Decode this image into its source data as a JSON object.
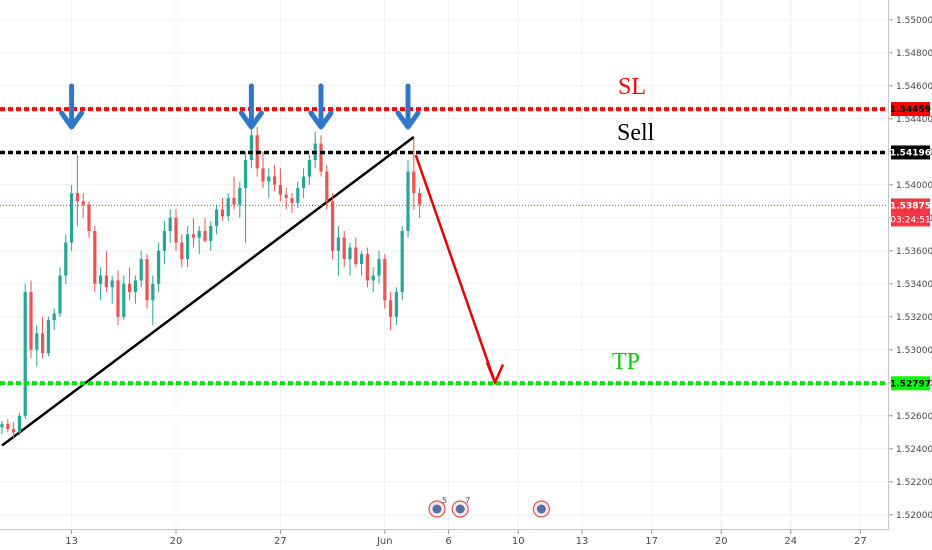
{
  "chart_data": {
    "type": "candlestick",
    "y_axis": {
      "ticks": [
        "1.55000",
        "1.54800",
        "1.54600",
        "1.54400",
        "1.54200",
        "1.54000",
        "1.53800",
        "1.53600",
        "1.53400",
        "1.53200",
        "1.53000",
        "1.52800",
        "1.52600",
        "1.52400",
        "1.52200",
        "1.52000"
      ],
      "range": [
        1.5192,
        1.5512
      ]
    },
    "x_axis": {
      "ticks": [
        {
          "label": "13",
          "idx": 12
        },
        {
          "label": "20",
          "idx": 30
        },
        {
          "label": "27",
          "idx": 48
        },
        {
          "label": "Jun",
          "idx": 66
        },
        {
          "label": "6",
          "idx": 77
        },
        {
          "label": "10",
          "idx": 89
        },
        {
          "label": "13",
          "idx": 100
        },
        {
          "label": "17",
          "idx": 112
        },
        {
          "label": "20",
          "idx": 124
        },
        {
          "label": "24",
          "idx": 136
        },
        {
          "label": "27",
          "idx": 148
        }
      ]
    },
    "levels": [
      {
        "name": "SL",
        "price": 1.54459,
        "label": "1.54459",
        "color": "#ff0000"
      },
      {
        "name": "Sell",
        "price": 1.54196,
        "label": "1.54196",
        "color": "#000000"
      },
      {
        "name": "TP",
        "price": 1.52797,
        "label": "1.52797",
        "color": "#00e000"
      }
    ],
    "current_price": {
      "value": 1.53875,
      "label": "1.53875",
      "countdown": "03:24:51",
      "color": "#f23645"
    },
    "annotations": [
      {
        "text": "SL",
        "color": "#ff0000"
      },
      {
        "text": "Sell",
        "color": "#000000"
      },
      {
        "text": "TP",
        "color": "#00d000"
      }
    ],
    "trendline": {
      "start": {
        "idx": 0,
        "price": 1.5242
      },
      "end": {
        "idx": 71,
        "price": 1.5429
      }
    },
    "projection": {
      "start": {
        "idx": 71,
        "price": 1.5418
      },
      "end": {
        "idx": 85,
        "price": 1.5279
      },
      "color": "#ee0000"
    },
    "arrow_markers": [
      {
        "idx": 12
      },
      {
        "idx": 43
      },
      {
        "idx": 55
      },
      {
        "idx": 70
      }
    ],
    "event_markers": [
      {
        "idx": 75,
        "count": "5"
      },
      {
        "idx": 79,
        "count": "7"
      },
      {
        "idx": 93,
        "count": ""
      }
    ],
    "candles": [
      [
        1.5253,
        1.5257,
        1.5249,
        1.5255
      ],
      [
        1.5255,
        1.5258,
        1.525,
        1.5252
      ],
      [
        1.5252,
        1.5256,
        1.5246,
        1.525
      ],
      [
        1.525,
        1.5262,
        1.5248,
        1.526
      ],
      [
        1.526,
        1.534,
        1.5258,
        1.5335
      ],
      [
        1.5335,
        1.5342,
        1.5295,
        1.53
      ],
      [
        1.53,
        1.5315,
        1.529,
        1.531
      ],
      [
        1.531,
        1.532,
        1.5295,
        1.5298
      ],
      [
        1.5298,
        1.532,
        1.5296,
        1.5318
      ],
      [
        1.5318,
        1.5325,
        1.5312,
        1.5322
      ],
      [
        1.5322,
        1.535,
        1.532,
        1.5345
      ],
      [
        1.5345,
        1.537,
        1.534,
        1.5365
      ],
      [
        1.5365,
        1.54,
        1.536,
        1.5395
      ],
      [
        1.5395,
        1.5418,
        1.5375,
        1.539
      ],
      [
        1.539,
        1.5395,
        1.538,
        1.5388
      ],
      [
        1.5388,
        1.539,
        1.5368,
        1.5372
      ],
      [
        1.5372,
        1.5375,
        1.5335,
        1.534
      ],
      [
        1.534,
        1.535,
        1.533,
        1.5345
      ],
      [
        1.5345,
        1.536,
        1.5335,
        1.5338
      ],
      [
        1.5338,
        1.5345,
        1.5328,
        1.5342
      ],
      [
        1.5342,
        1.5348,
        1.5315,
        1.532
      ],
      [
        1.532,
        1.5345,
        1.5318,
        1.534
      ],
      [
        1.534,
        1.535,
        1.533,
        1.5335
      ],
      [
        1.5335,
        1.5345,
        1.5328,
        1.5342
      ],
      [
        1.5342,
        1.536,
        1.5338,
        1.5355
      ],
      [
        1.5355,
        1.5358,
        1.5325,
        1.533
      ],
      [
        1.533,
        1.5345,
        1.5315,
        1.534
      ],
      [
        1.534,
        1.5365,
        1.5335,
        1.536
      ],
      [
        1.536,
        1.5378,
        1.5352,
        1.5372
      ],
      [
        1.5372,
        1.5385,
        1.5365,
        1.538
      ],
      [
        1.538,
        1.5385,
        1.536,
        1.5365
      ],
      [
        1.5365,
        1.537,
        1.535,
        1.5355
      ],
      [
        1.5355,
        1.5375,
        1.535,
        1.537
      ],
      [
        1.537,
        1.538,
        1.5362,
        1.5368
      ],
      [
        1.5368,
        1.5375,
        1.5358,
        1.5372
      ],
      [
        1.5372,
        1.538,
        1.5365,
        1.5366
      ],
      [
        1.5366,
        1.5378,
        1.536,
        1.5375
      ],
      [
        1.5375,
        1.5388,
        1.537,
        1.5385
      ],
      [
        1.5385,
        1.5392,
        1.5378,
        1.5381
      ],
      [
        1.5381,
        1.5395,
        1.5378,
        1.5392
      ],
      [
        1.5392,
        1.5405,
        1.5385,
        1.5388
      ],
      [
        1.5388,
        1.5402,
        1.538,
        1.5398
      ],
      [
        1.5398,
        1.542,
        1.5365,
        1.5415
      ],
      [
        1.5415,
        1.5438,
        1.541,
        1.543
      ],
      [
        1.543,
        1.5435,
        1.5405,
        1.541
      ],
      [
        1.541,
        1.542,
        1.5398,
        1.5402
      ],
      [
        1.5402,
        1.541,
        1.5392,
        1.5405
      ],
      [
        1.5405,
        1.5412,
        1.5396,
        1.54
      ],
      [
        1.54,
        1.541,
        1.539,
        1.5394
      ],
      [
        1.5394,
        1.5398,
        1.5385,
        1.5392
      ],
      [
        1.5392,
        1.5395,
        1.5383,
        1.5389
      ],
      [
        1.5389,
        1.5402,
        1.5386,
        1.5398
      ],
      [
        1.5398,
        1.541,
        1.5392,
        1.5405
      ],
      [
        1.5405,
        1.5418,
        1.54,
        1.5415
      ],
      [
        1.5415,
        1.5432,
        1.541,
        1.5425
      ],
      [
        1.5425,
        1.543,
        1.5405,
        1.5408
      ],
      [
        1.5408,
        1.5412,
        1.5385,
        1.539
      ],
      [
        1.539,
        1.5395,
        1.5355,
        1.536
      ],
      [
        1.536,
        1.5375,
        1.5345,
        1.5368
      ],
      [
        1.5368,
        1.5372,
        1.535,
        1.5355
      ],
      [
        1.5355,
        1.5365,
        1.5345,
        1.5362
      ],
      [
        1.5362,
        1.5368,
        1.535,
        1.5352
      ],
      [
        1.5352,
        1.536,
        1.5345,
        1.5358
      ],
      [
        1.5358,
        1.5362,
        1.5338,
        1.5342
      ],
      [
        1.5342,
        1.535,
        1.5335,
        1.5345
      ],
      [
        1.5345,
        1.536,
        1.534,
        1.5355
      ],
      [
        1.5355,
        1.5358,
        1.5325,
        1.533
      ],
      [
        1.533,
        1.5335,
        1.5312,
        1.532
      ],
      [
        1.532,
        1.5338,
        1.5315,
        1.5335
      ],
      [
        1.5335,
        1.5375,
        1.533,
        1.5372
      ],
      [
        1.5372,
        1.5415,
        1.5368,
        1.5408
      ],
      [
        1.5408,
        1.5428,
        1.5385,
        1.5395
      ],
      [
        1.5395,
        1.5398,
        1.538,
        1.5388
      ]
    ]
  },
  "labels": {
    "sl_price": "1.54459",
    "sell_price": "1.54196",
    "current_price": "1.53875",
    "countdown": "03:24:51",
    "tp_price": "1.52797",
    "sl_text": "SL",
    "sell_text": "Sell",
    "tp_text": "TP"
  }
}
